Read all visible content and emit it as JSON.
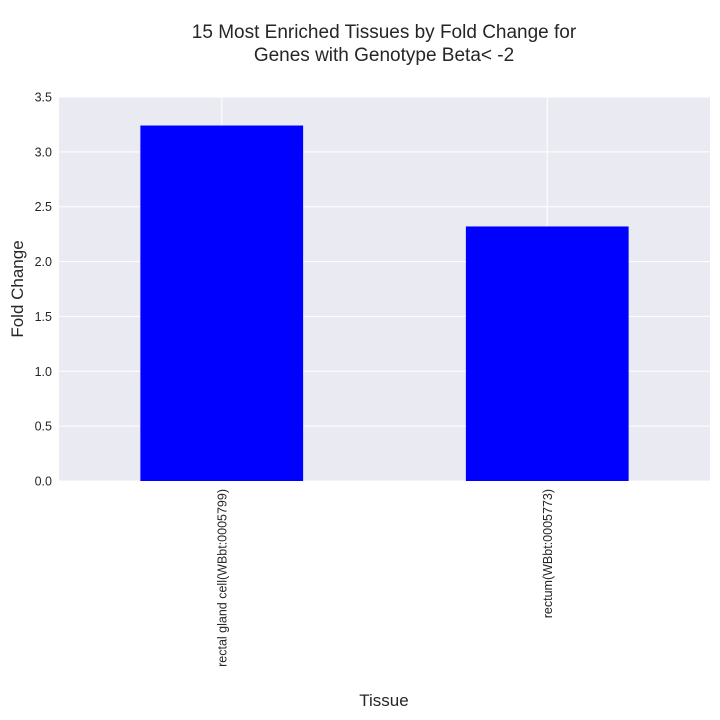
{
  "chart_data": {
    "type": "bar",
    "title": "15 Most Enriched Tissues by Fold Change for\nGenes with Genotype Beta< -2",
    "xlabel": "Tissue",
    "ylabel": "Fold Change",
    "categories": [
      "rectal gland cell(WBbt:0005799)",
      "rectum(WBbt:0005773)"
    ],
    "values": [
      3.24,
      2.32
    ],
    "ylim": [
      0,
      3.5
    ],
    "yticks": [
      "0.0",
      "0.5",
      "1.0",
      "1.5",
      "2.0",
      "2.5",
      "3.0",
      "3.5"
    ],
    "grid": true,
    "legend": "none",
    "colors": {
      "bar": "#0000ff",
      "background": "#eaeaf2",
      "grid": "#ffffff"
    }
  }
}
